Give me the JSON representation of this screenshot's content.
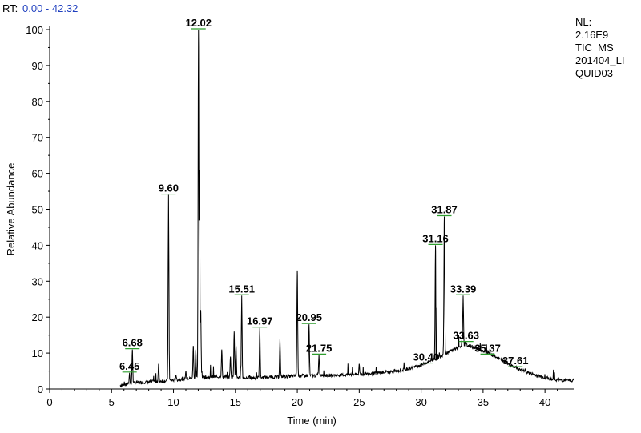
{
  "header": {
    "rt_prefix": "RT:",
    "rt_range": "0.00 - 42.32",
    "info_lines": [
      "NL:",
      "2.16E9",
      "TIC  MS",
      "201404_LI",
      "QUID03"
    ]
  },
  "colors": {
    "trace": "#000000",
    "rt_range_text": "#1f3fbf",
    "peak_marker": "#2e9e2e",
    "background": "#ffffff"
  },
  "chart_data": {
    "type": "line",
    "title": "",
    "xlabel": "Time (min)",
    "ylabel": "Relative Abundance",
    "xlim": [
      0,
      42.32
    ],
    "ylim": [
      0,
      100
    ],
    "x_ticks": [
      0,
      5,
      10,
      15,
      20,
      25,
      30,
      35,
      40
    ],
    "y_ticks": [
      0,
      10,
      20,
      30,
      40,
      50,
      60,
      70,
      80,
      90,
      100
    ],
    "grid": false,
    "legend": "none",
    "labeled_peaks": [
      {
        "label": "6.45",
        "x": 6.45,
        "y": 4.5
      },
      {
        "label": "6.68",
        "x": 6.68,
        "y": 11
      },
      {
        "label": "9.60",
        "x": 9.6,
        "y": 54
      },
      {
        "label": "12.02",
        "x": 12.02,
        "y": 100
      },
      {
        "label": "15.51",
        "x": 15.51,
        "y": 26
      },
      {
        "label": "16.97",
        "x": 16.97,
        "y": 17
      },
      {
        "label": "20.95",
        "x": 20.95,
        "y": 18
      },
      {
        "label": "21.75",
        "x": 21.75,
        "y": 9.5
      },
      {
        "label": "30.40",
        "x": 30.4,
        "y": 7
      },
      {
        "label": "31.16",
        "x": 31.16,
        "y": 40
      },
      {
        "label": "31.87",
        "x": 31.87,
        "y": 48
      },
      {
        "label": "33.39",
        "x": 33.39,
        "y": 26
      },
      {
        "label": "33.63",
        "x": 33.63,
        "y": 13
      },
      {
        "label": "35.37",
        "x": 35.37,
        "y": 9.5
      },
      {
        "label": "37.61",
        "x": 37.61,
        "y": 6
      }
    ],
    "unlabeled_peaks": [
      {
        "x": 8.8,
        "y": 7
      },
      {
        "x": 10.2,
        "y": 4
      },
      {
        "x": 11.0,
        "y": 5
      },
      {
        "x": 11.6,
        "y": 12
      },
      {
        "x": 11.8,
        "y": 11
      },
      {
        "x": 12.1,
        "y": 61
      },
      {
        "x": 12.2,
        "y": 22
      },
      {
        "x": 13.9,
        "y": 11
      },
      {
        "x": 14.6,
        "y": 9
      },
      {
        "x": 14.9,
        "y": 16
      },
      {
        "x": 15.05,
        "y": 12
      },
      {
        "x": 18.6,
        "y": 14
      },
      {
        "x": 20.0,
        "y": 33
      },
      {
        "x": 25.0,
        "y": 7
      },
      {
        "x": 27.2,
        "y": 5
      },
      {
        "x": 31.2,
        "y": 8
      },
      {
        "x": 33.3,
        "y": 14
      }
    ],
    "baseline": [
      [
        5.7,
        0.6
      ],
      [
        7,
        1.3
      ],
      [
        10,
        2.0
      ],
      [
        12,
        2.8
      ],
      [
        14,
        3.0
      ],
      [
        16,
        2.6
      ],
      [
        18,
        2.9
      ],
      [
        20,
        3.2
      ],
      [
        22,
        3.3
      ],
      [
        24,
        3.5
      ],
      [
        26,
        3.8
      ],
      [
        28,
        4.5
      ],
      [
        29,
        5.2
      ],
      [
        30,
        6.2
      ],
      [
        31,
        7.7
      ],
      [
        32,
        9.5
      ],
      [
        33,
        11.2
      ],
      [
        33.6,
        11.8
      ],
      [
        34,
        11.5
      ],
      [
        35,
        10.2
      ],
      [
        36,
        8.5
      ],
      [
        37,
        6.6
      ],
      [
        38,
        4.9
      ],
      [
        39,
        3.7
      ],
      [
        40,
        2.7
      ],
      [
        41,
        2.1
      ],
      [
        42.32,
        1.8
      ]
    ]
  }
}
